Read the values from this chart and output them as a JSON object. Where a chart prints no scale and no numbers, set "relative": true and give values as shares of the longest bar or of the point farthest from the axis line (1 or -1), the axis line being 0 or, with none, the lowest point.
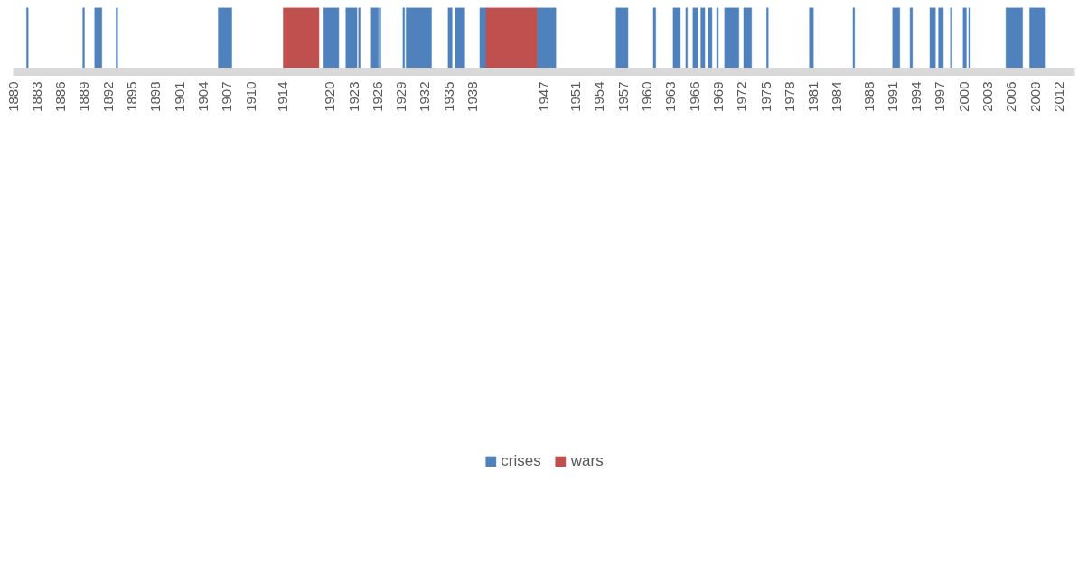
{
  "chart_data": {
    "type": "area",
    "relative": true,
    "grid": false,
    "legend": "bottom",
    "xlim": [
      1880,
      2014
    ],
    "xticks": [
      1880,
      1883,
      1886,
      1889,
      1892,
      1895,
      1898,
      1901,
      1904,
      1907,
      1910,
      1914,
      1920,
      1923,
      1926,
      1929,
      1932,
      1935,
      1938,
      1947,
      1951,
      1954,
      1957,
      1960,
      1963,
      1966,
      1969,
      1972,
      1975,
      1978,
      1981,
      1984,
      1988,
      1991,
      1994,
      1997,
      2000,
      2003,
      2006,
      2009,
      2012
    ],
    "series": [
      {
        "name": "crises",
        "color": "#4f81bd",
        "x": [
          1881.7,
          1881.7,
          1881.9,
          1881.9,
          1888.8,
          1888.8,
          1889.0,
          1889.0,
          1890.3,
          1890.3,
          1891.2,
          1891.2,
          1893.0,
          1893.0,
          1893.2,
          1893.2,
          1905.9,
          1905.9,
          1907.6,
          1907.6,
          1919.2,
          1919.2,
          1921.1,
          1921.1,
          1922.0,
          1922.0,
          1923.4,
          1923.4,
          1923.6,
          1923.6,
          1923.8,
          1923.8,
          1925.2,
          1925.2,
          1926.1,
          1926.1,
          1926.2,
          1926.2,
          1926.4,
          1926.4,
          1929.2,
          1929.2,
          1929.4,
          1929.4,
          1929.6,
          1929.6,
          1932.8,
          1932.8,
          1934.9,
          1934.9,
          1935.4,
          1935.4,
          1935.8,
          1935.8,
          1937.0,
          1937.0,
          1938.9,
          1938.9,
          1939.7,
          1939.7,
          1946.1,
          1946.1,
          1948.5,
          1948.5,
          1956.1,
          1956.1,
          1957.6,
          1957.6,
          1960.8,
          1960.8,
          1961.1,
          1961.1,
          1963.3,
          1963.3,
          1964.2,
          1964.2,
          1964.9,
          1964.9,
          1965.1,
          1965.1,
          1965.8,
          1965.8,
          1966.4,
          1966.4,
          1966.8,
          1966.8,
          1967.3,
          1967.3,
          1967.7,
          1967.7,
          1968.2,
          1968.2,
          1968.8,
          1968.8,
          1969.0,
          1969.0,
          1969.8,
          1969.8,
          1971.6,
          1971.6,
          1972.2,
          1972.2,
          1973.2,
          1973.2,
          1975.1,
          1975.1,
          1975.3,
          1975.3,
          1980.5,
          1980.5,
          1981.0,
          1981.0,
          1986.0,
          1986.0,
          1986.2,
          1986.2,
          1991.0,
          1991.0,
          1991.9,
          1991.9,
          1993.2,
          1993.2,
          1993.5,
          1993.5,
          1995.7,
          1995.7,
          1996.4,
          1996.4,
          1996.8,
          1996.8,
          1997.4,
          1997.4,
          1998.3,
          1998.3,
          1998.5,
          1998.5,
          1999.9,
          1999.9,
          2000.3,
          2000.3,
          2000.6,
          2000.6,
          2000.8,
          2000.8,
          2005.3,
          2005.3,
          2007.4,
          2007.4,
          2008.3,
          2008.3,
          2010.3,
          2010.3
        ],
        "values": [
          0,
          1,
          1,
          0,
          0,
          1,
          1,
          0,
          0,
          1,
          1,
          0,
          0,
          1,
          1,
          0,
          0,
          1,
          1,
          0,
          0,
          1,
          1,
          0,
          0,
          1,
          1,
          0,
          0,
          1,
          1,
          0,
          0,
          1,
          1,
          0,
          0,
          1,
          1,
          0,
          0,
          1,
          1,
          0,
          0,
          1,
          1,
          0,
          0,
          1,
          1,
          0,
          0,
          1,
          1,
          0,
          0,
          1,
          1,
          0,
          0,
          1,
          1,
          0,
          0,
          1,
          1,
          0,
          0,
          1,
          1,
          0,
          0,
          1,
          1,
          0,
          0,
          1,
          1,
          0,
          0,
          1,
          1,
          0,
          0,
          1,
          1,
          0,
          0,
          1,
          1,
          0,
          0,
          1,
          1,
          0,
          0,
          1,
          1,
          0,
          0,
          1,
          1,
          0,
          0,
          1,
          1,
          0,
          0,
          1,
          1,
          0,
          0,
          1,
          1,
          0,
          0,
          1,
          1,
          0,
          0,
          1,
          1,
          0,
          0,
          1,
          1,
          0,
          0,
          1,
          1,
          0,
          0,
          1,
          1,
          0,
          0,
          1,
          1,
          0,
          0,
          1,
          1,
          0,
          0,
          1,
          1,
          0,
          0,
          1,
          1,
          0
        ]
      },
      {
        "name": "wars",
        "color": "#c0504d",
        "x": [
          1914.1,
          1914.1,
          1918.6,
          1918.6,
          1939.7,
          1939.7,
          1946.1,
          1946.1
        ],
        "values": [
          0,
          1,
          1,
          0,
          0,
          1,
          1,
          0
        ]
      }
    ]
  }
}
